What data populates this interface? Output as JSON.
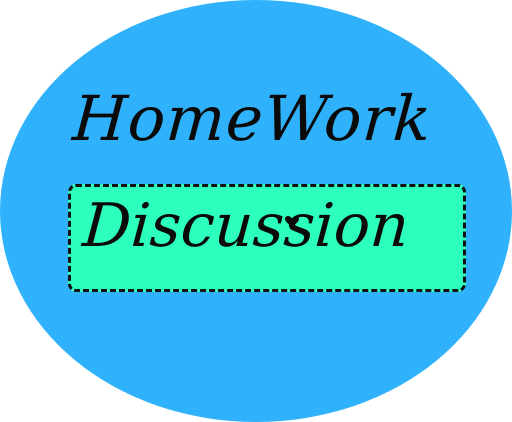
{
  "logo": {
    "title": "HomeWork",
    "subtitle": "Discussion",
    "background_color": "#2fb2fb",
    "box_color": "#2dffbd",
    "text_color": "#0a0a0a",
    "heart_icon": "heart-icon"
  }
}
